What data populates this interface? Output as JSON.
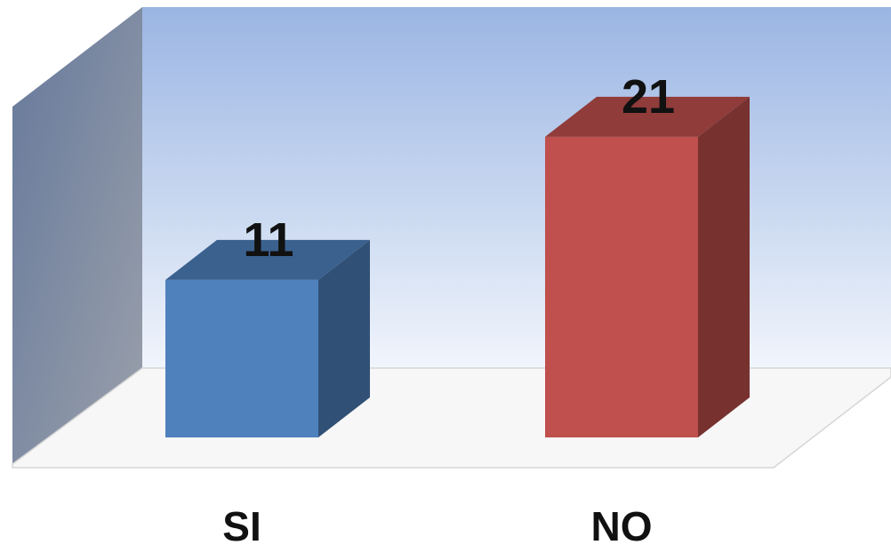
{
  "chart_data": {
    "type": "bar",
    "three_d": true,
    "categories": [
      "SI",
      "NO"
    ],
    "values": [
      11,
      21
    ],
    "colors": [
      "#4f81bd",
      "#c0504d"
    ],
    "data_labels": [
      "11",
      "21"
    ],
    "ylim": [
      0,
      25
    ],
    "grid": false,
    "legend": "none",
    "title": "",
    "xlabel": "",
    "ylabel": ""
  }
}
